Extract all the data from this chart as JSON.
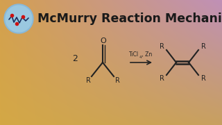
{
  "title": "McMurry Reaction Mechanism",
  "title_fontsize": 12.5,
  "title_fontweight": "bold",
  "title_color": "#1a1a1a",
  "bg_color_left": "#e8b860",
  "bg_color_right": "#c898b8",
  "reagent_label_main": "TiCl",
  "reagent_sub": "4",
  "reagent_rest": " , Zn",
  "number_2": "2",
  "R_label": "R",
  "O_label": "O",
  "logo_circle_color": "#88b8d8",
  "line_color": "#222222",
  "text_color": "#222222",
  "bg_top_left": "#dba040",
  "bg_top_right": "#c080b0",
  "bg_bot_left": "#e8c070",
  "bg_bot_right": "#d0a8c8"
}
